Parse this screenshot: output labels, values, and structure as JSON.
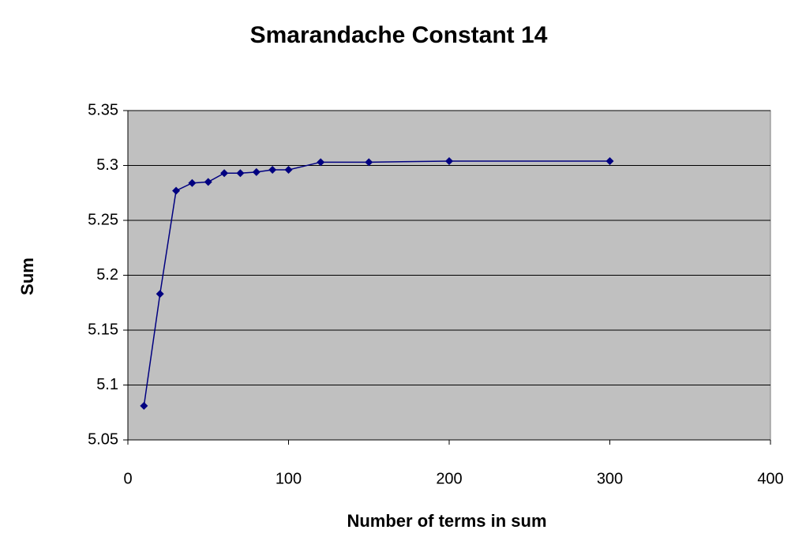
{
  "chart_data": {
    "type": "line",
    "title": "Smarandache Constant 14",
    "x_label": "Number of terms in sum",
    "y_label": "Sum",
    "x": [
      10,
      20,
      30,
      40,
      50,
      60,
      70,
      80,
      90,
      100,
      120,
      150,
      200,
      300
    ],
    "series": [
      {
        "name": "Sum",
        "color": "#000080",
        "values": [
          5.081,
          5.183,
          5.277,
          5.284,
          5.285,
          5.293,
          5.293,
          5.294,
          5.296,
          5.296,
          5.303,
          5.303,
          5.304,
          5.304
        ]
      }
    ],
    "xlim": [
      0,
      400
    ],
    "xticks": [
      0,
      100,
      200,
      300,
      400
    ],
    "ylim": [
      5.05,
      5.35
    ],
    "yticks": [
      5.05,
      5.1,
      5.15,
      5.2,
      5.25,
      5.3,
      5.35
    ],
    "grid": true,
    "plot_background": "#c0c0c0"
  }
}
